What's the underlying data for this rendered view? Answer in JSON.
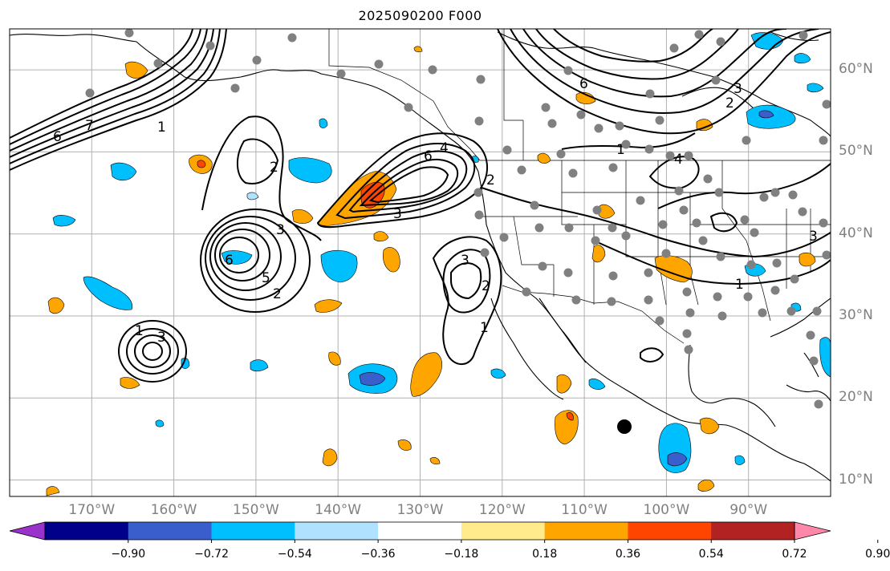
{
  "title": "2025090200 F000",
  "latitude_labels": [
    {
      "text": "60°N",
      "lat": 60
    },
    {
      "text": "50°N",
      "lat": 50
    },
    {
      "text": "40°N",
      "lat": 40
    },
    {
      "text": "30°N",
      "lat": 30
    },
    {
      "text": "20°N",
      "lat": 20
    },
    {
      "text": "10°N",
      "lat": 10
    }
  ],
  "longitude_labels": [
    {
      "text": "170°W",
      "lon": -170
    },
    {
      "text": "160°W",
      "lon": -160
    },
    {
      "text": "150°W",
      "lon": -150
    },
    {
      "text": "140°W",
      "lon": -140
    },
    {
      "text": "130°W",
      "lon": -130
    },
    {
      "text": "120°W",
      "lon": -120
    },
    {
      "text": "110°W",
      "lon": -110
    },
    {
      "text": "100°W",
      "lon": -100
    },
    {
      "text": "90°W",
      "lon": -90
    }
  ],
  "colorbar": {
    "colors": [
      "#9933cc",
      "#00008b",
      "#3a5fcd",
      "#00bfff",
      "#b0e2ff",
      "#ffffff",
      "#ffeb8c",
      "#ffa500",
      "#ff4500",
      "#b22222",
      "#ff88aa"
    ],
    "tick_labels": [
      "−0.90",
      "−0.72",
      "−0.54",
      "−0.36",
      "−0.18",
      "0.18",
      "0.36",
      "0.54",
      "0.72",
      "0.90"
    ]
  },
  "contour_labels": [
    "1",
    "2",
    "3",
    "4",
    "5",
    "6",
    "7"
  ],
  "map": {
    "lon_range": [
      -180,
      -80
    ],
    "lat_range": [
      8,
      65
    ],
    "grid_lons": [
      -170,
      -160,
      -150,
      -140,
      -130,
      -120,
      -110,
      -100,
      -90
    ],
    "grid_lats": [
      10,
      20,
      30,
      40,
      50,
      60
    ]
  }
}
